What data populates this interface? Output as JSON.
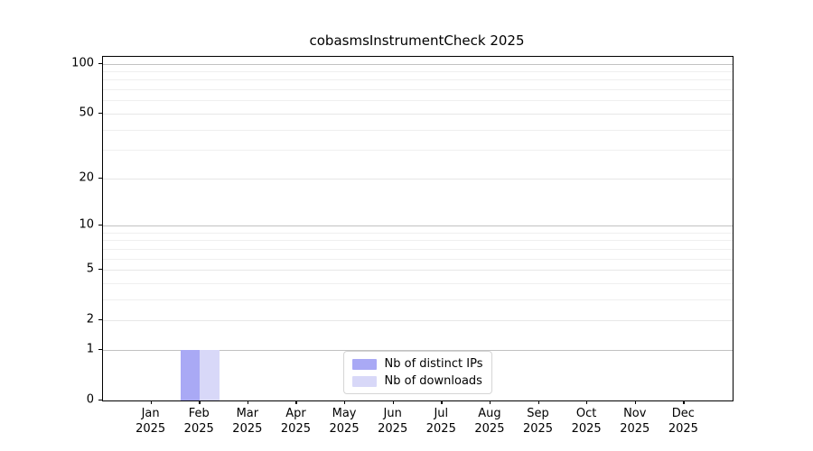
{
  "chart_data": {
    "type": "bar",
    "title": "cobasmsInstrumentCheck 2025",
    "categories": [
      {
        "month": "Jan",
        "year": "2025"
      },
      {
        "month": "Feb",
        "year": "2025"
      },
      {
        "month": "Mar",
        "year": "2025"
      },
      {
        "month": "Apr",
        "year": "2025"
      },
      {
        "month": "May",
        "year": "2025"
      },
      {
        "month": "Jun",
        "year": "2025"
      },
      {
        "month": "Jul",
        "year": "2025"
      },
      {
        "month": "Aug",
        "year": "2025"
      },
      {
        "month": "Sep",
        "year": "2025"
      },
      {
        "month": "Oct",
        "year": "2025"
      },
      {
        "month": "Nov",
        "year": "2025"
      },
      {
        "month": "Dec",
        "year": "2025"
      }
    ],
    "series": [
      {
        "name": "Nb of distinct IPs",
        "color": "#a9a9f5",
        "values": [
          0,
          1,
          0,
          0,
          0,
          0,
          0,
          0,
          0,
          0,
          0,
          0
        ]
      },
      {
        "name": "Nb of downloads",
        "color": "#d8d8f8",
        "values": [
          0,
          1,
          0,
          0,
          0,
          0,
          0,
          0,
          0,
          0,
          0,
          0
        ]
      }
    ],
    "yscale": "log1p",
    "ylim": [
      0,
      110
    ],
    "yticks": [
      0,
      1,
      2,
      5,
      10,
      20,
      50,
      100
    ],
    "decade_ticks": [
      1,
      10,
      100
    ],
    "minor_yticks": [
      3,
      4,
      6,
      7,
      8,
      9,
      30,
      40,
      60,
      70,
      80,
      90
    ],
    "grid": true,
    "legend_position": "lower center",
    "colors": {
      "grid_decade": "#c2c2c2",
      "grid_labeled": "#e7e7e7",
      "grid_minor": "#efefef",
      "axis": "#000000",
      "background": "#ffffff"
    }
  }
}
